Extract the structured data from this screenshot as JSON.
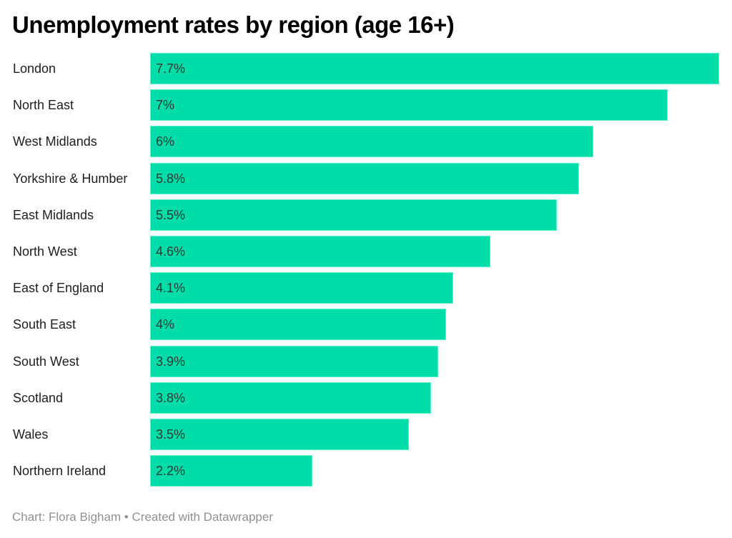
{
  "chart_data": {
    "type": "bar",
    "orientation": "horizontal",
    "title": "Unemployment rates by region (age 16+)",
    "categories": [
      "London",
      "North East",
      "West Midlands",
      "Yorkshire & Humber",
      "East Midlands",
      "North West",
      "East of England",
      "South East",
      "South West",
      "Scotland",
      "Wales",
      "Northern Ireland"
    ],
    "values": [
      7.7,
      7,
      6,
      5.8,
      5.5,
      4.6,
      4.1,
      4,
      3.9,
      3.8,
      3.5,
      2.2
    ],
    "value_labels": [
      "7.7%",
      "7%",
      "6%",
      "5.8%",
      "5.5%",
      "4.6%",
      "4.1%",
      "4%",
      "3.9%",
      "3.8%",
      "3.5%",
      "2.2%"
    ],
    "unit": "%",
    "xlim": [
      0,
      7.7
    ],
    "grid": false,
    "bar_color": "#00DDA8"
  },
  "footer": "Chart: Flora Bigham • Created with Datawrapper"
}
